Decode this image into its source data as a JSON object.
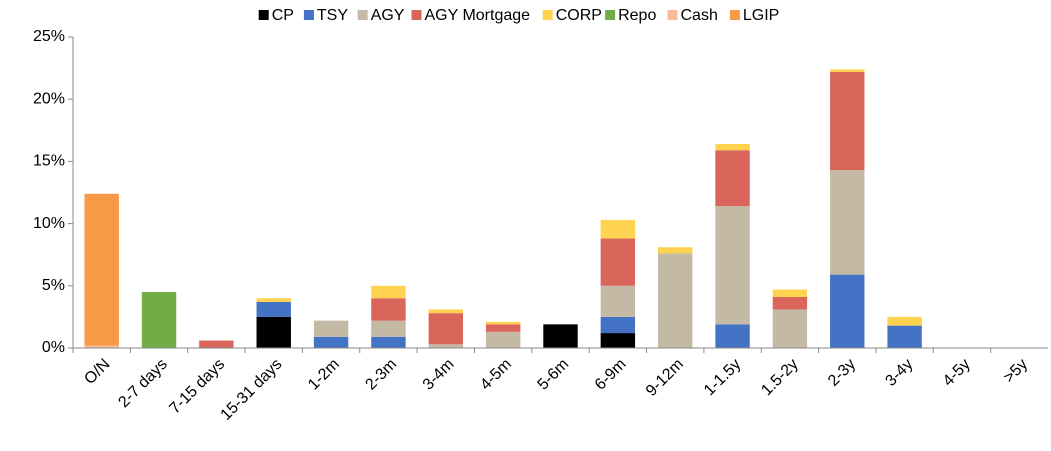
{
  "chart_data": {
    "type": "stacked_bar",
    "categories": [
      "O/N",
      "2-7 days",
      "7-15 days",
      "15-31 days",
      "1-2m",
      "2-3m",
      "3-4m",
      "4-5m",
      "5-6m",
      "6-9m",
      "9-12m",
      "1-1.5y",
      "1.5-2y",
      "2-3y",
      "3-4y",
      "4-5y",
      ">5y"
    ],
    "series": [
      {
        "name": "CP",
        "color": "#000000",
        "values": [
          0,
          0,
          0,
          2.5,
          0,
          0,
          0,
          0,
          1.9,
          1.2,
          0,
          0,
          0,
          0,
          0,
          0,
          0
        ]
      },
      {
        "name": "TSY",
        "color": "#4472c4",
        "values": [
          0,
          0,
          0,
          1.2,
          0.9,
          0.9,
          0,
          0,
          0,
          1.3,
          0,
          1.9,
          0,
          5.9,
          1.8,
          0,
          0
        ]
      },
      {
        "name": "AGY",
        "color": "#c4b9a4",
        "values": [
          0,
          0,
          0,
          0,
          1.3,
          1.3,
          0.3,
          1.3,
          0,
          2.5,
          7.6,
          9.5,
          3.1,
          8.4,
          0,
          0,
          0
        ]
      },
      {
        "name": "AGY Mortgage",
        "color": "#d9655b",
        "values": [
          0,
          0,
          0.6,
          0,
          0,
          1.8,
          2.5,
          0.6,
          0,
          3.8,
          0,
          4.5,
          1.0,
          7.9,
          0,
          0,
          0
        ]
      },
      {
        "name": "CORP",
        "color": "#ffd24f",
        "values": [
          0,
          0,
          0,
          0.3,
          0,
          1.0,
          0.3,
          0.2,
          0,
          1.5,
          0.5,
          0.5,
          0.6,
          0.2,
          0.7,
          0,
          0
        ]
      },
      {
        "name": "Repo",
        "color": "#70ad47",
        "values": [
          0,
          4.5,
          0,
          0,
          0,
          0,
          0,
          0,
          0,
          0,
          0,
          0,
          0,
          0,
          0,
          0,
          0
        ]
      },
      {
        "name": "Cash",
        "color": "#f6bb96",
        "values": [
          0.2,
          0,
          0,
          0,
          0,
          0,
          0,
          0,
          0,
          0,
          0,
          0,
          0,
          0,
          0,
          0,
          0
        ]
      },
      {
        "name": "LGIP",
        "color": "#f79a46",
        "values": [
          12.2,
          0,
          0,
          0,
          0,
          0,
          0,
          0,
          0,
          0,
          0,
          0,
          0,
          0,
          0,
          0,
          0
        ]
      }
    ],
    "ylim": [
      0,
      25
    ],
    "yticks": [
      {
        "value": 0,
        "label": "0%"
      },
      {
        "value": 5,
        "label": "5%"
      },
      {
        "value": 10,
        "label": "10%"
      },
      {
        "value": 15,
        "label": "15%"
      },
      {
        "value": 20,
        "label": "20%"
      },
      {
        "value": 25,
        "label": "25%"
      }
    ],
    "legend": "top"
  }
}
